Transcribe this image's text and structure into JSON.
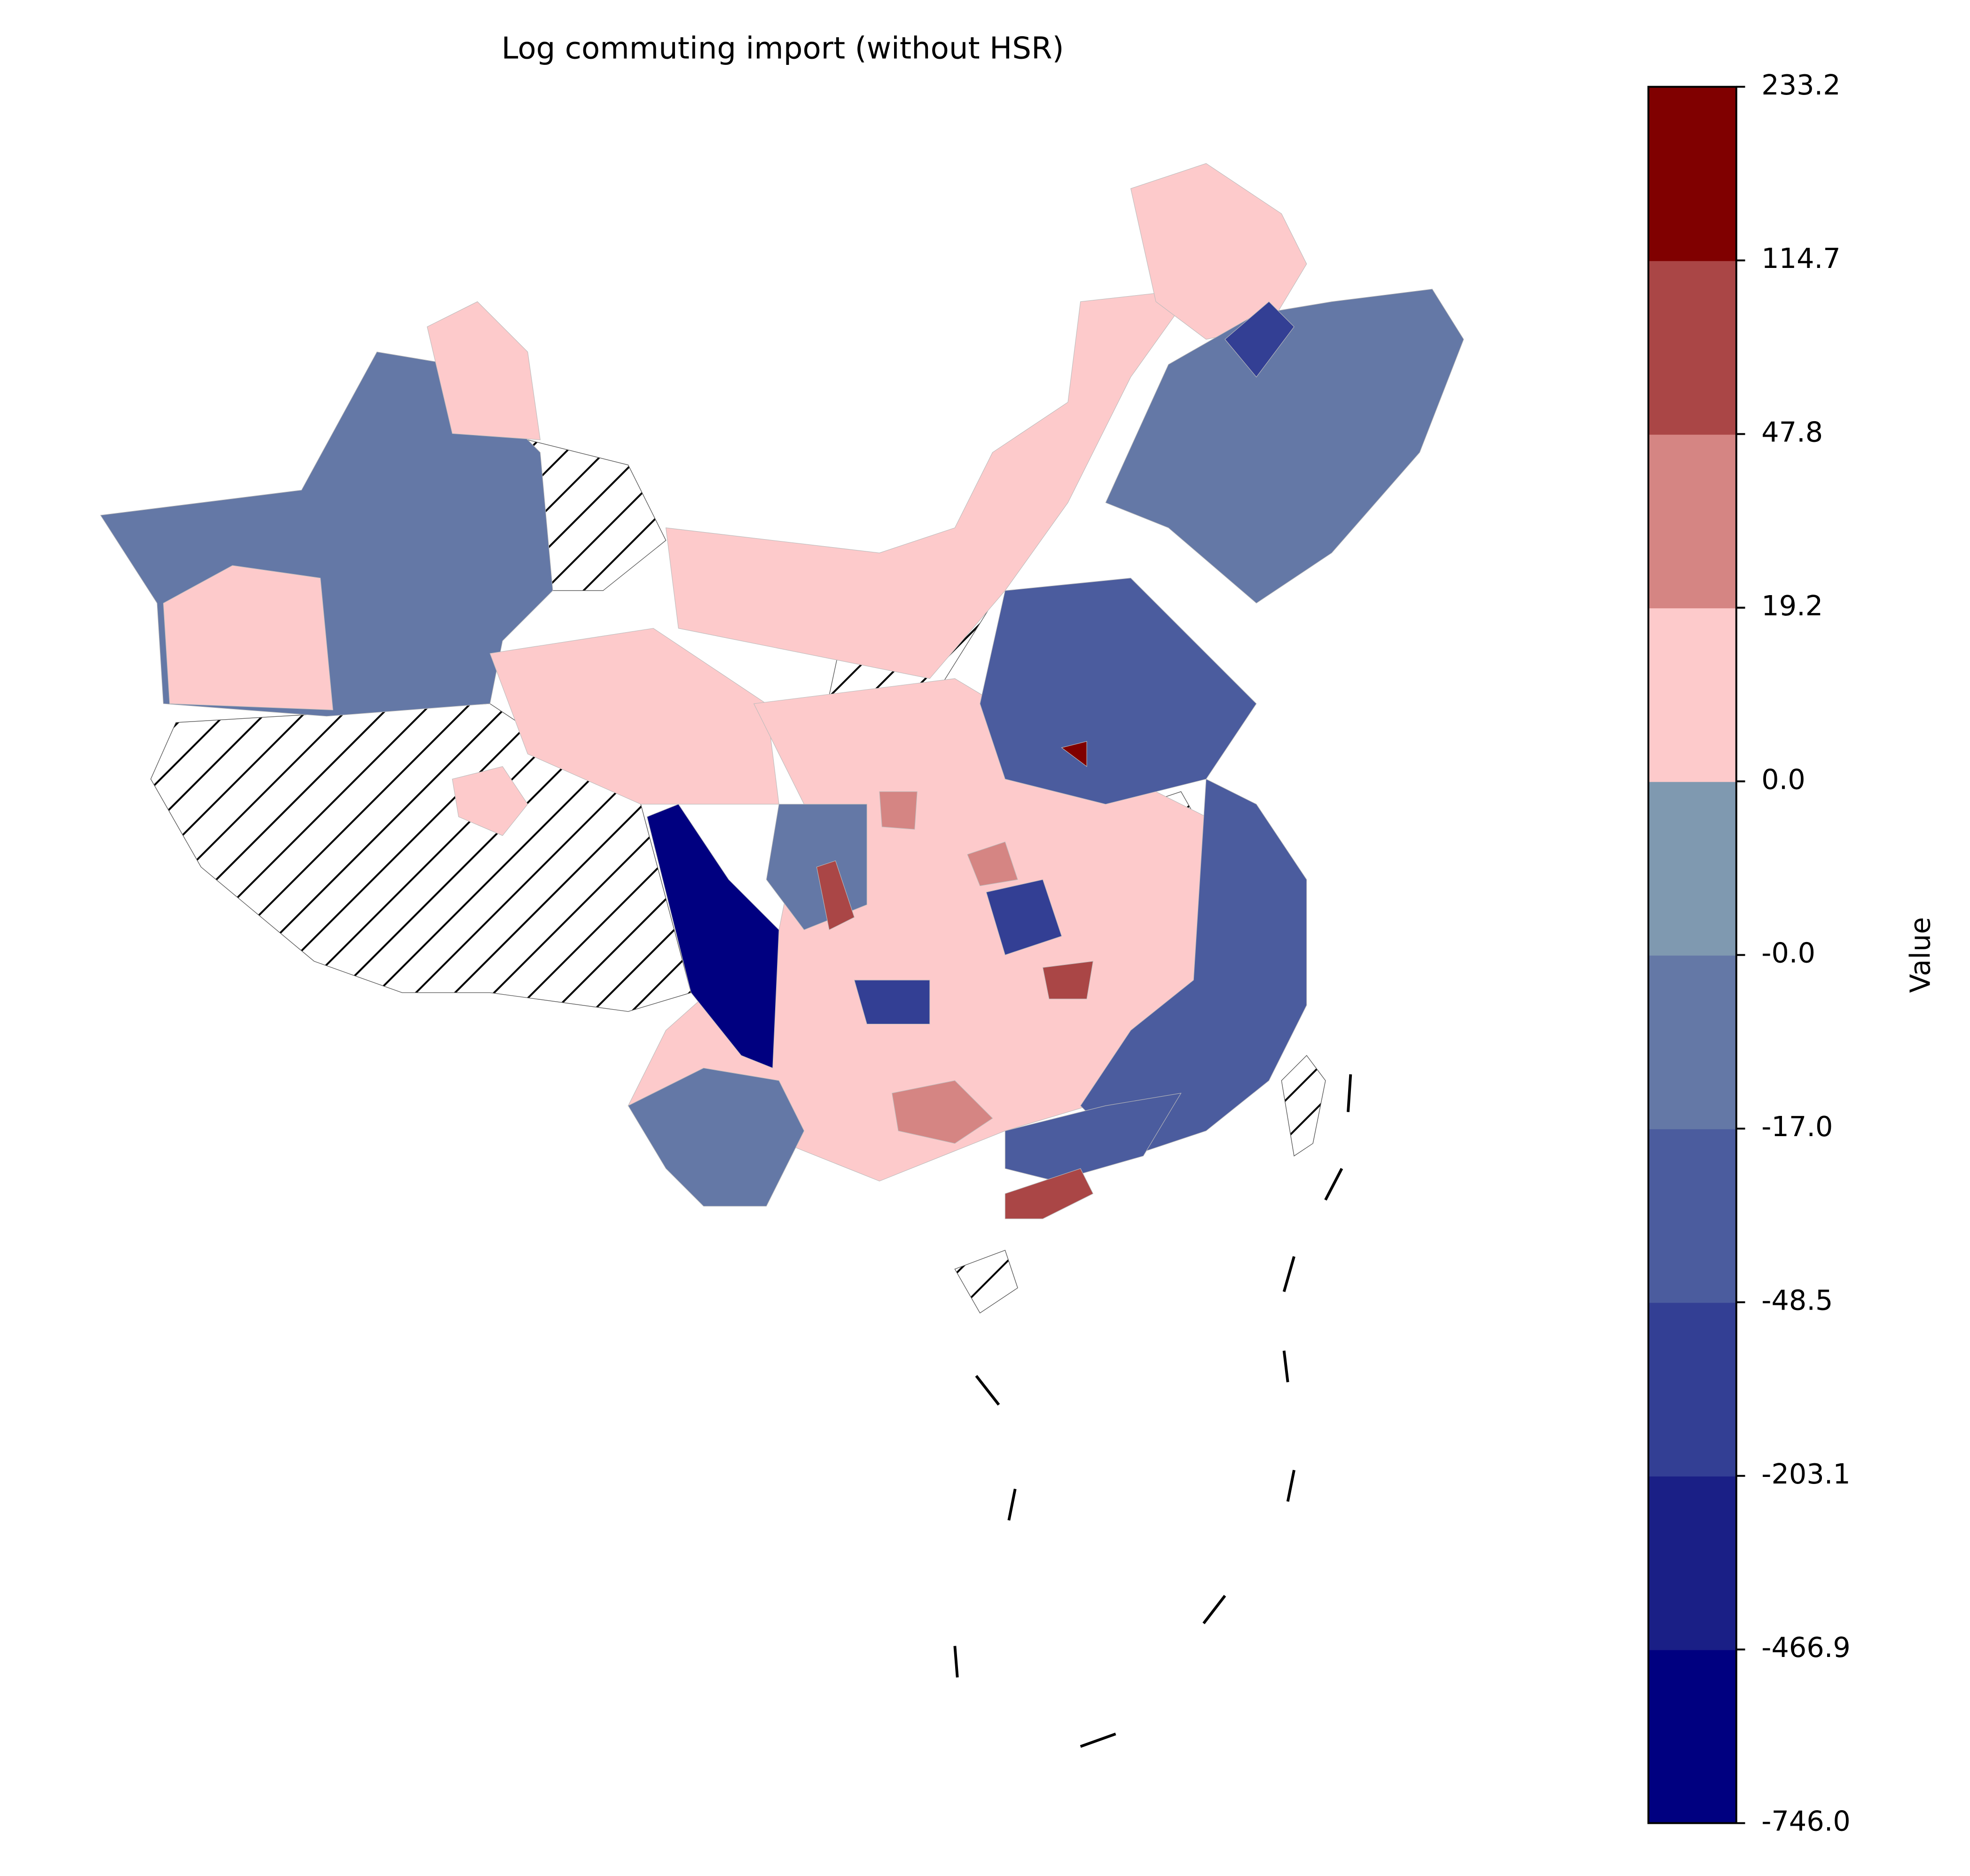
{
  "chart_data": {
    "type": "choropleth",
    "title": "Log commuting import (without HSR)",
    "colorbar_label": "Value",
    "colorbar_ticks": [
      {
        "value": -746.0,
        "label": "-746.0"
      },
      {
        "value": -466.9,
        "label": "-466.9"
      },
      {
        "value": -203.1,
        "label": "-203.1"
      },
      {
        "value": -48.5,
        "label": "-48.5"
      },
      {
        "value": -17.0,
        "label": "-17.0"
      },
      {
        "value": -0.0,
        "label": "-0.0"
      },
      {
        "value": 0.0,
        "label": "0.0"
      },
      19.2,
      47.8,
      114.7,
      233.2
    ],
    "colors": [
      "#000080",
      "#1a1f86",
      "#333f94",
      "#4b5c9e",
      "#6478a6",
      "#7f99b0",
      "#fdcacb",
      "#d58583",
      "#aa4646",
      "#800000"
    ]
  }
}
